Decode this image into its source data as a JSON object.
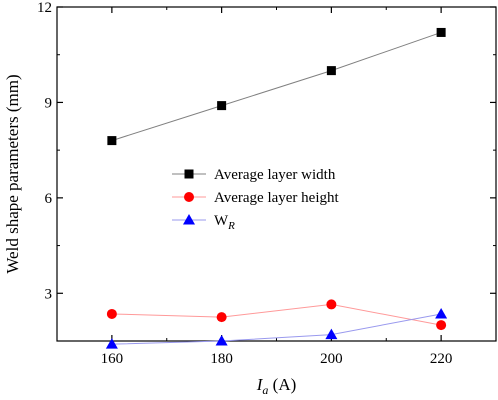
{
  "chart_data": {
    "type": "line",
    "x": [
      160,
      180,
      200,
      220
    ],
    "xlim": [
      150,
      230
    ],
    "ylim": [
      1.5,
      12
    ],
    "xticks": [
      160,
      180,
      200,
      220
    ],
    "yticks": [
      3,
      6,
      9,
      12
    ],
    "xlabel_main": "I",
    "xlabel_sub": "a",
    "xlabel_unit": " (A)",
    "ylabel": "Weld shape parameters (mm)",
    "grid": false,
    "legend_position": "center",
    "series": [
      {
        "name_main": "Average layer width",
        "name_sub": "",
        "values": [
          7.8,
          8.9,
          10.0,
          11.2
        ],
        "marker": "square",
        "color": "#000000",
        "line_color": "#808080"
      },
      {
        "name_main": "Average layer height",
        "name_sub": "",
        "values": [
          2.35,
          2.25,
          2.65,
          2.0
        ],
        "marker": "circle",
        "color": "#ff0000",
        "line_color": "#ff9999"
      },
      {
        "name_main": "W",
        "name_sub": "R",
        "values": [
          1.4,
          1.5,
          1.7,
          2.35
        ],
        "marker": "triangle",
        "color": "#0000ff",
        "line_color": "#9999ee"
      }
    ]
  }
}
